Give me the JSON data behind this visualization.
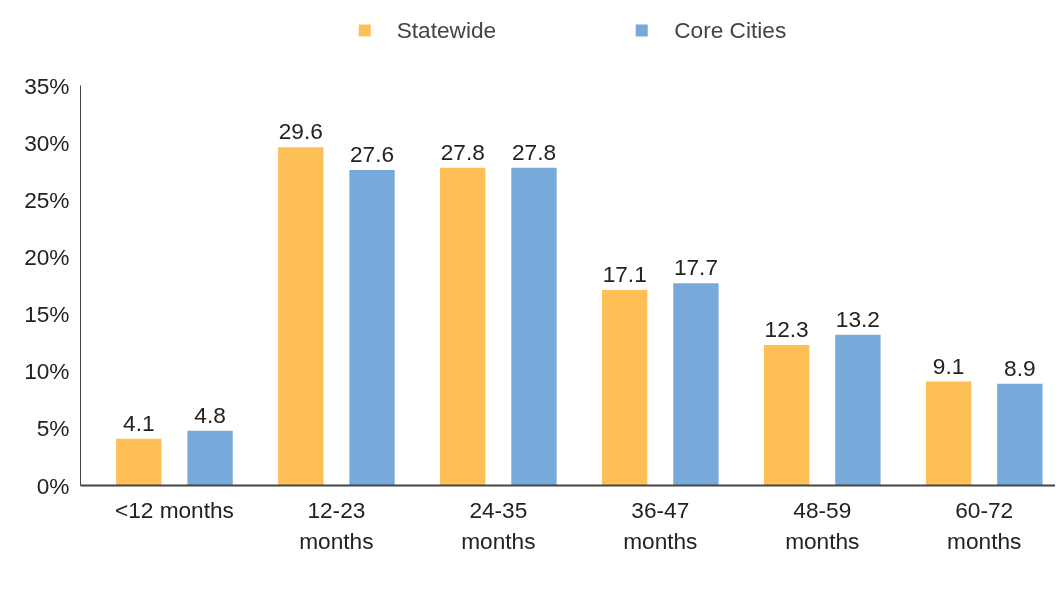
{
  "chart_data": {
    "type": "bar",
    "categories": [
      "<12 months",
      "12-23 months",
      "24-35 months",
      "36-47 months",
      "48-59 months",
      "60-72 months"
    ],
    "series": [
      {
        "name": "Statewide",
        "color": "#ffbf57",
        "values": [
          4.1,
          29.6,
          27.8,
          17.1,
          12.3,
          9.1
        ]
      },
      {
        "name": "Core Cities",
        "color": "#77aadb",
        "values": [
          4.8,
          27.6,
          27.8,
          17.7,
          13.2,
          8.9
        ]
      }
    ],
    "ylim": [
      0,
      35
    ],
    "yticks": [
      {
        "value": 0,
        "label": "0%"
      },
      {
        "value": 5,
        "label": "5%"
      },
      {
        "value": 10,
        "label": "10%"
      },
      {
        "value": 15,
        "label": "15%"
      },
      {
        "value": 20,
        "label": "20%"
      },
      {
        "value": 25,
        "label": "25%"
      },
      {
        "value": 30,
        "label": "30%"
      },
      {
        "value": 35,
        "label": "35%"
      }
    ],
    "grid": false,
    "legend": "top",
    "data_labels": true
  }
}
